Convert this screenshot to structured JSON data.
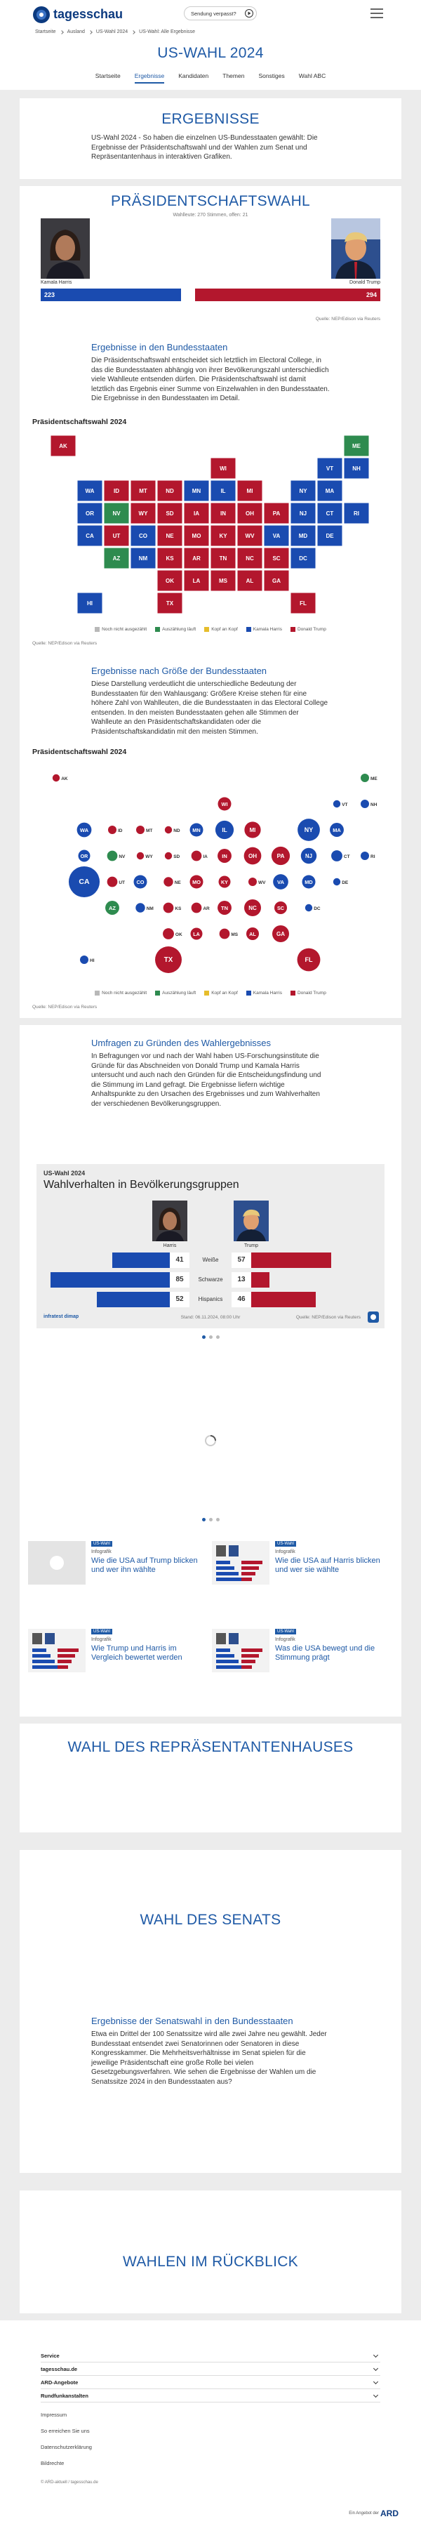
{
  "header": {
    "logo": "tagesschau",
    "missed": "Sendung verpasst?"
  },
  "breadcrumb": [
    "Startseite",
    "Ausland",
    "US-Wahl 2024",
    "US-Wahl: Alle Ergebnisse"
  ],
  "page_title": "US-WAHL 2024",
  "nav": [
    "Startseite",
    "Ergebnisse",
    "Kandidaten",
    "Themen",
    "Sonstiges",
    "Wahl ABC"
  ],
  "results": {
    "title": "ERGEBNISSE",
    "text": "US-Wahl 2024 - So haben die einzelnen US-Bundesstaaten gewählt: Die Ergebnisse der Präsidentschaftswahl und der Wahlen zum Senat und Repräsentantenhaus in interaktiven Grafiken."
  },
  "president": {
    "title": "PRÄSIDENTSCHAFTSWAHL",
    "subtitle": "Wahlleute: 270 Stimmen, offen: 21",
    "candidates": [
      {
        "name": "Kamala Harris",
        "votes": 223,
        "color": "#1a4bb0"
      },
      {
        "name": "Donald Trump",
        "votes": 294,
        "color": "#b3172d"
      }
    ],
    "source": "Quelle: NEP/Edison via Reuters",
    "states_heading": "Ergebnisse in den Bundesstaaten",
    "states_text": "Die Präsidentschaftswahl entscheidet sich letztlich im Electoral College, in das die Bundesstaaten abhängig von ihrer Bevölkerungszahl unterschiedlich viele Wahlleute entsenden dürfen. Die Präsidentschaftswahl ist damit letztlich das Ergebnis einer Summe von Einzelwahlen in den Bundesstaaten. Die Ergebnisse in den Bundesstaaten im Detail.",
    "map_title": "Präsidentschaftswahl 2024",
    "size_heading": "Ergebnisse nach Größe der Bundesstaaten",
    "size_text": "Diese Darstellung verdeutlicht die unterschiedliche Bedeutung der Bundesstaaten für den Wahlausgang: Größere Kreise stehen für eine höhere Zahl von Wahlleuten, die die Bundesstaaten in das Electoral College entsenden. In den meisten Bundesstaaten gehen alle Stimmen der Wahlleute an den Präsidentschaftskandidaten oder die Präsidentschaftskandidatin mit den meisten Stimmen.",
    "bubble_title": "Präsidentschaftswahl 2024",
    "legend": [
      {
        "name": "Noch nicht ausgezählt",
        "color": "#b8b8b8"
      },
      {
        "name": "Auszählung läuft",
        "color": "#2e8b4f"
      },
      {
        "name": "Kopf an Kopf",
        "color": "#e6bd2c"
      },
      {
        "name": "Kamala Harris",
        "color": "#1a4bb0"
      },
      {
        "name": "Donald Trump",
        "color": "#b3172d"
      }
    ],
    "states": [
      {
        "label": "AK",
        "votes": 3,
        "color": "#b3172d"
      },
      {
        "label": "ME",
        "votes": 4,
        "color": "#2e8b4f"
      },
      {
        "label": "WI",
        "votes": 10,
        "color": "#b3172d"
      },
      {
        "label": "VT",
        "votes": 3,
        "color": "#1a4bb0"
      },
      {
        "label": "NH",
        "votes": 4,
        "color": "#1a4bb0"
      },
      {
        "label": "WA",
        "votes": 12,
        "color": "#1a4bb0"
      },
      {
        "label": "ID",
        "votes": 4,
        "color": "#b3172d"
      },
      {
        "label": "MT",
        "votes": 4,
        "color": "#b3172d"
      },
      {
        "label": "ND",
        "votes": 3,
        "color": "#b3172d"
      },
      {
        "label": "MN",
        "votes": 10,
        "color": "#1a4bb0"
      },
      {
        "label": "IL",
        "votes": 19,
        "color": "#1a4bb0"
      },
      {
        "label": "MI",
        "votes": 15,
        "color": "#b3172d"
      },
      {
        "label": "NY",
        "votes": 28,
        "color": "#1a4bb0"
      },
      {
        "label": "MA",
        "votes": 11,
        "color": "#1a4bb0"
      },
      {
        "label": "OR",
        "votes": 8,
        "color": "#1a4bb0"
      },
      {
        "label": "NV",
        "votes": 6,
        "color": "#2e8b4f"
      },
      {
        "label": "WY",
        "votes": 3,
        "color": "#b3172d"
      },
      {
        "label": "SD",
        "votes": 3,
        "color": "#b3172d"
      },
      {
        "label": "IA",
        "votes": 6,
        "color": "#b3172d"
      },
      {
        "label": "IN",
        "votes": 11,
        "color": "#b3172d"
      },
      {
        "label": "OH",
        "votes": 17,
        "color": "#b3172d"
      },
      {
        "label": "PA",
        "votes": 19,
        "color": "#b3172d"
      },
      {
        "label": "NJ",
        "votes": 14,
        "color": "#1a4bb0"
      },
      {
        "label": "CT",
        "votes": 7,
        "color": "#1a4bb0"
      },
      {
        "label": "RI",
        "votes": 4,
        "color": "#1a4bb0"
      },
      {
        "label": "CA",
        "votes": 54,
        "color": "#1a4bb0"
      },
      {
        "label": "UT",
        "votes": 6,
        "color": "#b3172d"
      },
      {
        "label": "CO",
        "votes": 10,
        "color": "#1a4bb0"
      },
      {
        "label": "NE",
        "votes": 5,
        "color": "#b3172d"
      },
      {
        "label": "MO",
        "votes": 10,
        "color": "#b3172d"
      },
      {
        "label": "KY",
        "votes": 8,
        "color": "#b3172d"
      },
      {
        "label": "WV",
        "votes": 4,
        "color": "#b3172d"
      },
      {
        "label": "VA",
        "votes": 13,
        "color": "#1a4bb0"
      },
      {
        "label": "MD",
        "votes": 10,
        "color": "#1a4bb0"
      },
      {
        "label": "DE",
        "votes": 3,
        "color": "#1a4bb0"
      },
      {
        "label": "AZ",
        "votes": 11,
        "color": "#2e8b4f"
      },
      {
        "label": "NM",
        "votes": 5,
        "color": "#1a4bb0"
      },
      {
        "label": "KS",
        "votes": 6,
        "color": "#b3172d"
      },
      {
        "label": "AR",
        "votes": 6,
        "color": "#b3172d"
      },
      {
        "label": "TN",
        "votes": 11,
        "color": "#b3172d"
      },
      {
        "label": "NC",
        "votes": 16,
        "color": "#b3172d"
      },
      {
        "label": "SC",
        "votes": 9,
        "color": "#b3172d"
      },
      {
        "label": "DC",
        "votes": 3,
        "color": "#1a4bb0"
      },
      {
        "label": "OK",
        "votes": 7,
        "color": "#b3172d"
      },
      {
        "label": "LA",
        "votes": 8,
        "color": "#b3172d"
      },
      {
        "label": "MS",
        "votes": 6,
        "color": "#b3172d"
      },
      {
        "label": "AL",
        "votes": 9,
        "color": "#b3172d"
      },
      {
        "label": "GA",
        "votes": 16,
        "color": "#b3172d"
      },
      {
        "label": "HI",
        "votes": 4,
        "color": "#1a4bb0"
      },
      {
        "label": "TX",
        "votes": 40,
        "color": "#b3172d"
      },
      {
        "label": "FL",
        "votes": 30,
        "color": "#b3172d"
      }
    ]
  },
  "survey": {
    "heading": "Umfragen zu Gründen des Wahlergebnisses",
    "text": "In Befragungen vor und nach der Wahl haben US-Forschungsinstitute die Gründe für das Abschneiden von Donald Trump und Kamala Harris untersucht und auch nach den Gründen für die Entscheidungsfindung und die Stimmung im Land gefragt. Die Ergebnisse liefern wichtige Anhaltspunkte zu den Ursachen des Ergebnisses und zum Wahlverhalten der verschiedenen Bevölkerungsgruppen.",
    "chart": {
      "kicker": "US-Wahl 2024",
      "title": "Wahlverhalten in Bevölkerungsgruppen",
      "candidates": [
        {
          "name": "Harris",
          "color": "#1a4bb0"
        },
        {
          "name": "Trump",
          "color": "#b3172d"
        }
      ],
      "groups": [
        {
          "label": "Weiße",
          "values": [
            41,
            57
          ]
        },
        {
          "label": "Schwarze",
          "values": [
            85,
            13
          ]
        },
        {
          "label": "Hispanics",
          "values": [
            52,
            46
          ]
        }
      ],
      "brand": "infratest dimap",
      "date": "Stand: 06.11.2024, 08:00 Uhr",
      "source": "Quelle: NEP/Edison via Reuters"
    }
  },
  "teasers": [
    {
      "tag": "US-Wahl",
      "topline": "Infografik",
      "title": "Wie die USA auf Trump blicken und wer ihn wählte"
    },
    {
      "tag": "US-Wahl",
      "topline": "Infografik",
      "title": "Wie die USA auf Harris blicken und wer sie wählte"
    },
    {
      "tag": "US-Wahl",
      "topline": "Infografik",
      "title": "Wie Trump und Harris im Vergleich bewertet werden"
    },
    {
      "tag": "US-Wahl",
      "topline": "Infografik",
      "title": "Was die USA bewegt und die Stimmung prägt"
    }
  ],
  "house": {
    "title": "WAHL DES REPRÄSENTANTENHAUSES"
  },
  "senate": {
    "title": "WAHL DES SENATS",
    "heading": "Ergebnisse der Senatswahl in den Bundesstaaten",
    "text": "Etwa ein Drittel der 100 Senatssitze wird alle zwei Jahre neu gewählt. Jeder Bundesstaat entsendet zwei Senatorinnen oder Senatoren in diese Kongresskammer. Die Mehrheitsverhältnisse im Senat spielen für die jeweilige Präsidentschaft eine große Rolle bei vielen Gesetzgebungsverfahren. Wie sehen die Ergebnisse der Wahlen um die Senatssitze 2024 in den Bundesstaaten aus?"
  },
  "review": {
    "title": "WAHLEN IM RÜCKBLICK"
  },
  "footer": {
    "menu": [
      "Service",
      "tagesschau.de",
      "ARD-Angebote",
      "Rundfunkanstalten"
    ],
    "links": [
      "Impressum",
      "So erreichen Sie uns",
      "Datenschutzerklärung",
      "Bildrechte"
    ],
    "copyright": "© ARD-aktuell / tagesschau.de",
    "offer": "Ein Angebot der",
    "ard": "ARD"
  }
}
